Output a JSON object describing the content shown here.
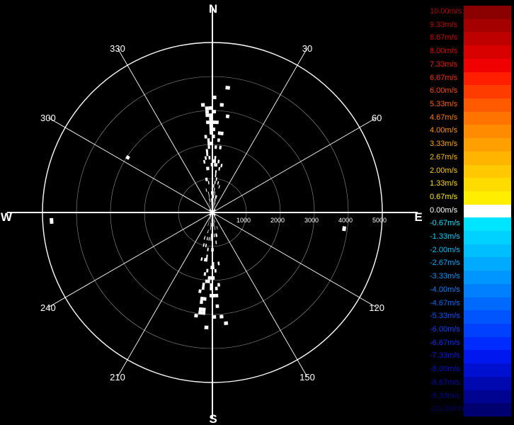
{
  "chart_data": {
    "type": "polar-heatmap",
    "title": "",
    "directions": {
      "north": "N",
      "south": "S",
      "east": "E",
      "west": "W"
    },
    "angle_labels": [
      {
        "angle": 30,
        "text": "30"
      },
      {
        "angle": 60,
        "text": "60"
      },
      {
        "angle": 120,
        "text": "120"
      },
      {
        "angle": 150,
        "text": "150"
      },
      {
        "angle": 210,
        "text": "210"
      },
      {
        "angle": 240,
        "text": "240"
      },
      {
        "angle": 300,
        "text": "300"
      },
      {
        "angle": 330,
        "text": "330"
      }
    ],
    "range_rings": [
      1000,
      2000,
      3000,
      4000,
      5000
    ],
    "range_labels": [
      "1000",
      "2000",
      "3000",
      "4000",
      "5000"
    ],
    "color_scale": [
      {
        "label": "10.00m/s",
        "color": "#8b0000",
        "text_color": "#b30000"
      },
      {
        "label": "9.33m/s",
        "color": "#a50000",
        "text_color": "#c00000"
      },
      {
        "label": "8.67m/s",
        "color": "#bf0000",
        "text_color": "#d00000"
      },
      {
        "label": "8.00m/s",
        "color": "#d90000",
        "text_color": "#e00000"
      },
      {
        "label": "7.33m/s",
        "color": "#f00000",
        "text_color": "#ee1a00"
      },
      {
        "label": "6.67m/s",
        "color": "#ff1e00",
        "text_color": "#ff2a00"
      },
      {
        "label": "6.00m/s",
        "color": "#ff3c00",
        "text_color": "#ff4500"
      },
      {
        "label": "5.33m/s",
        "color": "#ff5a00",
        "text_color": "#ff5e00"
      },
      {
        "label": "4.67m/s",
        "color": "#ff7300",
        "text_color": "#ff7800"
      },
      {
        "label": "4.00m/s",
        "color": "#ff8c00",
        "text_color": "#ff9000"
      },
      {
        "label": "3.33m/s",
        "color": "#ffa000",
        "text_color": "#ffa500"
      },
      {
        "label": "2.67m/s",
        "color": "#ffb400",
        "text_color": "#ffb800"
      },
      {
        "label": "2.00m/s",
        "color": "#ffc800",
        "text_color": "#ffcc00"
      },
      {
        "label": "1.33m/s",
        "color": "#ffdc00",
        "text_color": "#ffdd00"
      },
      {
        "label": "0.67m/s",
        "color": "#ffee00",
        "text_color": "#ffee00"
      },
      {
        "label": "0.00m/s",
        "color": "#ffffff",
        "text_color": "#ffffff"
      },
      {
        "label": "-0.67m/s",
        "color": "#00e5ff",
        "text_color": "#00e5ff"
      },
      {
        "label": "-1.33m/s",
        "color": "#00d2ff",
        "text_color": "#00d2ff"
      },
      {
        "label": "-2.00m/s",
        "color": "#00bfff",
        "text_color": "#00bfff"
      },
      {
        "label": "-2.67m/s",
        "color": "#00aaff",
        "text_color": "#00aaff"
      },
      {
        "label": "-3.33m/s",
        "color": "#0096ff",
        "text_color": "#0096ff"
      },
      {
        "label": "-4.00m/s",
        "color": "#0080ff",
        "text_color": "#0080ff"
      },
      {
        "label": "-4.67m/s",
        "color": "#006aff",
        "text_color": "#006aff"
      },
      {
        "label": "-5.33m/s",
        "color": "#0055ff",
        "text_color": "#0055ff"
      },
      {
        "label": "-6.00m/s",
        "color": "#0040ff",
        "text_color": "#0040ff"
      },
      {
        "label": "-6.67m/s",
        "color": "#002bff",
        "text_color": "#002bff"
      },
      {
        "label": "-7.33m/s",
        "color": "#0018f0",
        "text_color": "#0018f0"
      },
      {
        "label": "-8.00m/s",
        "color": "#0010d0",
        "text_color": "#0010d0"
      },
      {
        "label": "-8.67m/s",
        "color": "#0008b0",
        "text_color": "#0008b0"
      },
      {
        "label": "-9.33m/s",
        "color": "#000490",
        "text_color": "#000490"
      },
      {
        "label": "-10.00m/s",
        "color": "#000070",
        "text_color": "#000070"
      }
    ],
    "grid": true,
    "legend_position": "right"
  }
}
